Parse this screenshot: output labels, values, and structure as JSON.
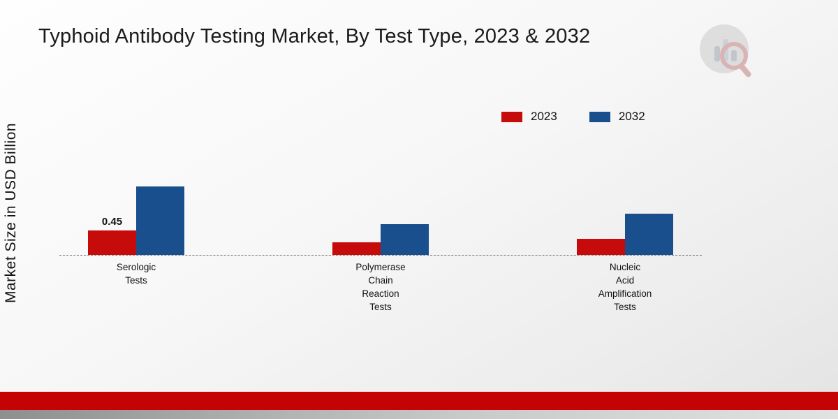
{
  "title": "Typhoid Antibody Testing Market, By Test Type, 2023 & 2032",
  "ylabel": "Market Size in USD Billion",
  "legend": [
    {
      "label": "2023",
      "color": "#c60b0b"
    },
    {
      "label": "2032",
      "color": "#1a4f8e"
    }
  ],
  "chart_data": {
    "type": "bar",
    "title": "Typhoid Antibody Testing Market, By Test Type, 2023 & 2032",
    "ylabel": "Market Size in USD Billion",
    "xlabel": "",
    "categories": [
      "Serologic Tests",
      "Polymerase Chain Reaction Tests",
      "Nucleic Acid Amplification Tests"
    ],
    "category_lines": [
      [
        "Serologic",
        "Tests"
      ],
      [
        "Polymerase",
        "Chain",
        "Reaction",
        "Tests"
      ],
      [
        "Nucleic",
        "Acid",
        "Amplification",
        "Tests"
      ]
    ],
    "series": [
      {
        "name": "2023",
        "color": "#c60b0b",
        "values": [
          0.45,
          0.23,
          0.29
        ]
      },
      {
        "name": "2032",
        "color": "#1a4f8e",
        "values": [
          1.25,
          0.57,
          0.76
        ]
      }
    ],
    "data_labels": [
      [
        "0.45",
        "",
        ""
      ],
      [
        "",
        "",
        ""
      ]
    ],
    "ylim": [
      0,
      1.4
    ],
    "grid": false,
    "legend_position": "top-right",
    "baseline_style": "dashed"
  }
}
